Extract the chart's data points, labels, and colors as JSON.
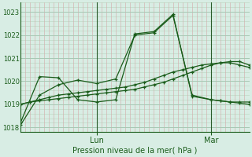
{
  "title": "Pression niveau de la mer( hPa )",
  "background_color": "#d8ede4",
  "line_color": "#1a5c1a",
  "grid_major_color": "#a8c8b4",
  "grid_minor_v_color": "#d4a8a8",
  "grid_minor_h_color": "#b8d4c0",
  "day_line_color": "#2a5c2a",
  "ylim": [
    1017.8,
    1023.4
  ],
  "yticks": [
    1018,
    1019,
    1020,
    1021,
    1022,
    1023
  ],
  "xlim": [
    0,
    2.0
  ],
  "lun_x": 0.667,
  "mar_x": 1.667,
  "num_days": 3,
  "series": [
    {
      "x": [
        0,
        0.083,
        0.167,
        0.25,
        0.333,
        0.417,
        0.5,
        0.583,
        0.667,
        0.75,
        0.833,
        0.917,
        1.0,
        1.083,
        1.167,
        1.25,
        1.333,
        1.417,
        1.5,
        1.583,
        1.667,
        1.75,
        1.833,
        1.917,
        2.0
      ],
      "y": [
        1019.0,
        1019.1,
        1019.15,
        1019.2,
        1019.25,
        1019.3,
        1019.35,
        1019.4,
        1019.45,
        1019.5,
        1019.55,
        1019.6,
        1019.65,
        1019.75,
        1019.85,
        1019.95,
        1020.1,
        1020.25,
        1020.4,
        1020.55,
        1020.7,
        1020.8,
        1020.85,
        1020.85,
        1020.7
      ]
    },
    {
      "x": [
        0,
        0.083,
        0.167,
        0.25,
        0.333,
        0.417,
        0.5,
        0.583,
        0.667,
        0.75,
        0.833,
        0.917,
        1.0,
        1.083,
        1.167,
        1.25,
        1.333,
        1.417,
        1.5,
        1.583,
        1.667,
        1.75,
        1.833,
        1.917,
        2.0
      ],
      "y": [
        1019.0,
        1019.1,
        1019.2,
        1019.3,
        1019.4,
        1019.45,
        1019.5,
        1019.55,
        1019.6,
        1019.65,
        1019.7,
        1019.75,
        1019.85,
        1019.95,
        1020.1,
        1020.25,
        1020.4,
        1020.5,
        1020.6,
        1020.7,
        1020.75,
        1020.8,
        1020.8,
        1020.7,
        1020.6
      ]
    },
    {
      "x": [
        0,
        0.167,
        0.333,
        0.5,
        0.667,
        0.833,
        1.0,
        1.167,
        1.333,
        1.5,
        1.667,
        1.75,
        1.833,
        1.917,
        2.0
      ],
      "y": [
        1018.1,
        1019.4,
        1019.85,
        1020.05,
        1019.9,
        1020.1,
        1022.0,
        1022.1,
        1022.85,
        1019.4,
        1019.2,
        1019.15,
        1019.1,
        1019.1,
        1019.1
      ]
    },
    {
      "x": [
        0,
        0.167,
        0.333,
        0.5,
        0.667,
        0.833,
        1.0,
        1.167,
        1.333,
        1.5,
        1.667,
        1.75,
        1.833,
        1.917,
        2.0
      ],
      "y": [
        1018.2,
        1020.2,
        1020.15,
        1019.2,
        1019.1,
        1019.2,
        1022.05,
        1022.15,
        1022.9,
        1019.35,
        1019.2,
        1019.15,
        1019.1,
        1019.05,
        1019.0
      ]
    }
  ]
}
